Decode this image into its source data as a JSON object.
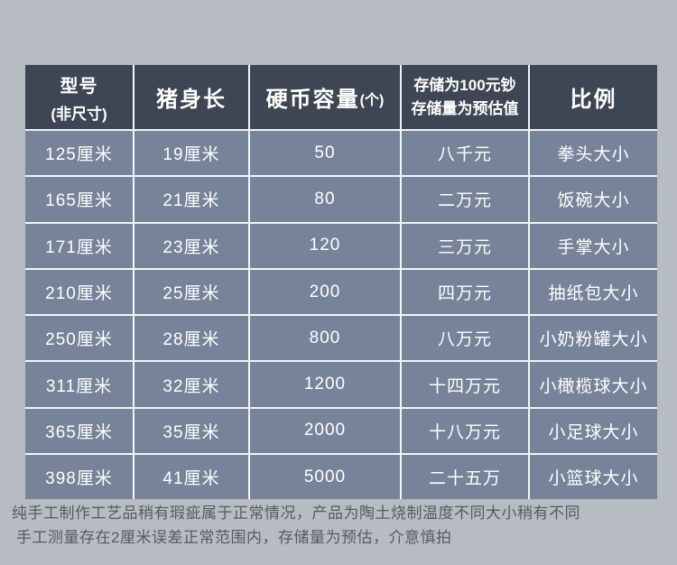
{
  "colors": {
    "page_bg": "#b7bbc2",
    "header_bg": "#3e4653",
    "cell_bg": "#778399",
    "grid_line": "#f3f4f5",
    "header_text": "#ffffff",
    "cell_text": "#ffffff",
    "footer_text": "#565a61"
  },
  "table": {
    "header": {
      "model_title": "型号",
      "model_subtitle": "(非尺寸)",
      "length_title": "猪身长",
      "capacity_title": "硬币容量",
      "capacity_unit": "(个)",
      "storage_line1": "存储为100元钞",
      "storage_line2": "存储量为预估值",
      "ratio_title": "比例"
    },
    "rows": [
      [
        "125厘米",
        "19厘米",
        "50",
        "八千元",
        "拳头大小"
      ],
      [
        "165厘米",
        "21厘米",
        "80",
        "二万元",
        "饭碗大小"
      ],
      [
        "171厘米",
        "23厘米",
        "120",
        "三万元",
        "手掌大小"
      ],
      [
        "210厘米",
        "25厘米",
        "200",
        "四万元",
        "抽纸包大小"
      ],
      [
        "250厘米",
        "28厘米",
        "800",
        "八万元",
        "小奶粉罐大小"
      ],
      [
        "311厘米",
        "32厘米",
        "1200",
        "十四万元",
        "小橄榄球大小"
      ],
      [
        "365厘米",
        "35厘米",
        "2000",
        "十八万元",
        "小足球大小"
      ],
      [
        "398厘米",
        "41厘米",
        "5000",
        "二十五万",
        "小篮球大小"
      ]
    ]
  },
  "footer": {
    "line1": "纯手工制作工艺品稍有瑕疵属于正常情况，产品为陶土烧制温度不同大小稍有不同",
    "line2": "手工测量存在2厘米误差正常范围内，存储量为预估，介意慎拍"
  }
}
